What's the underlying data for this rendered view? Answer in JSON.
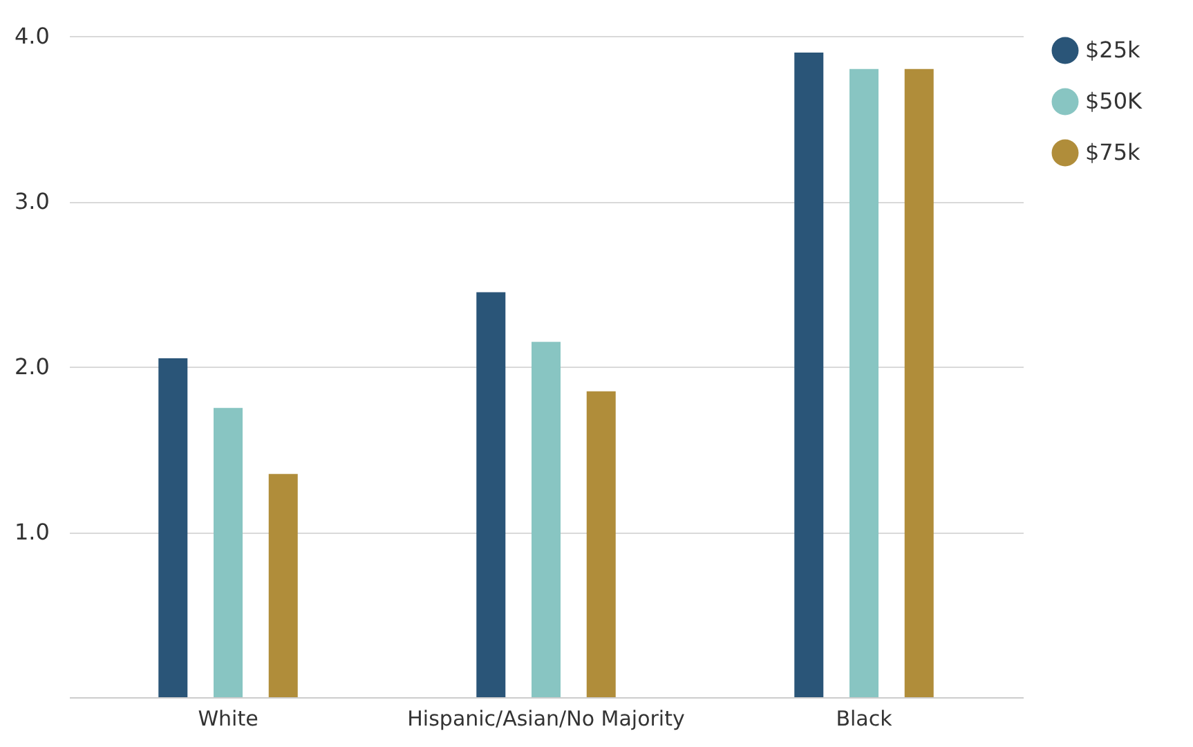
{
  "chart_data": {
    "type": "bar",
    "categories": [
      "White",
      "Hispanic/Asian/No Majority",
      "Black"
    ],
    "series": [
      {
        "name": "$25k",
        "color": "#2a5578",
        "values": [
          2.05,
          2.45,
          3.9
        ]
      },
      {
        "name": "$50K",
        "color": "#88c5c2",
        "values": [
          1.75,
          2.15,
          3.8
        ]
      },
      {
        "name": "$75k",
        "color": "#b08d3a",
        "values": [
          1.35,
          1.85,
          3.8
        ]
      }
    ],
    "ylim": [
      0,
      4.0
    ],
    "yticks": [
      {
        "value": 1,
        "label": "1.0"
      },
      {
        "value": 2,
        "label": "2.0"
      },
      {
        "value": 3,
        "label": "3.0"
      },
      {
        "value": 4,
        "label": "4.0"
      }
    ],
    "grid": "y",
    "legend": "top right"
  }
}
